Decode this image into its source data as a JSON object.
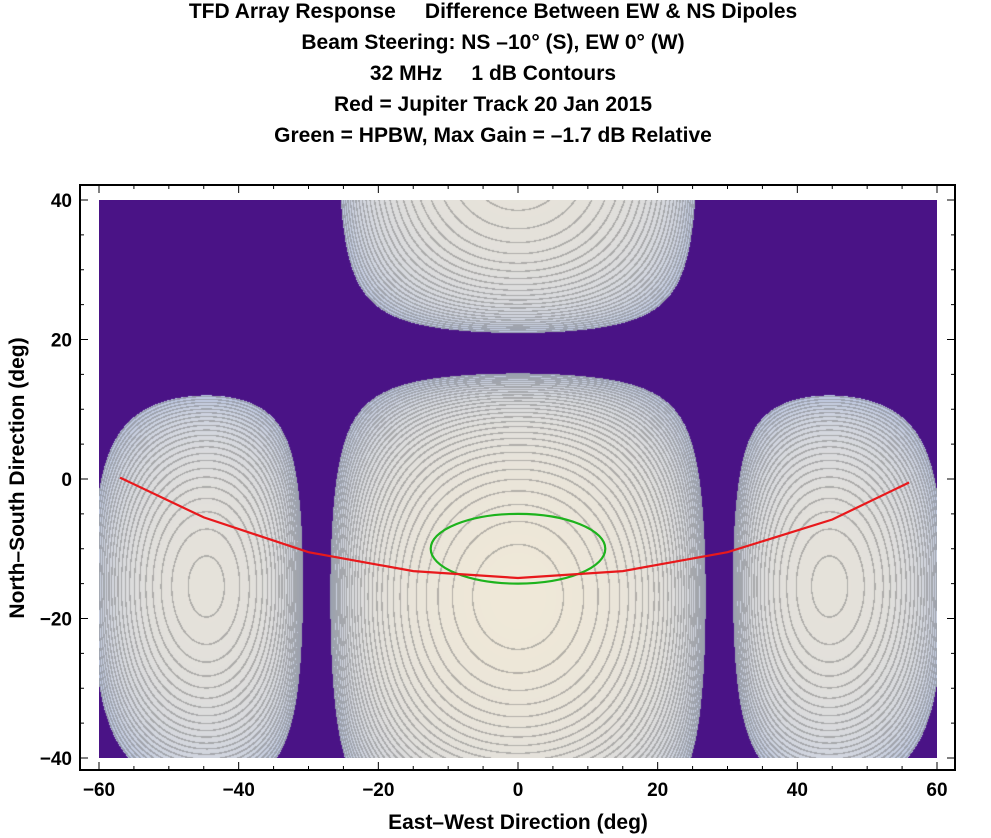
{
  "chart_data": {
    "type": "contour",
    "title_lines": [
      "TFD Array Response     Difference Between EW & NS Dipoles",
      "Beam Steering: NS –10° (S), EW 0° (W)",
      "32 MHz     1 dB Contours",
      "Red = Jupiter Track 20 Jan 2015",
      "Green = HPBW, Max Gain = –1.7 dB Relative"
    ],
    "xlabel": "East–West Direction (deg)",
    "ylabel": "North–South Direction (deg)",
    "xlim": [
      -63,
      62
    ],
    "ylim": [
      -42,
      42
    ],
    "data_xlim": [
      -60,
      60
    ],
    "data_ylim": [
      -40,
      40
    ],
    "xticks": [
      -60,
      -40,
      -20,
      0,
      20,
      40,
      60
    ],
    "xtick_labels": [
      "−60",
      "−40",
      "−20",
      "0",
      "20",
      "40",
      "60"
    ],
    "yticks": [
      -40,
      -20,
      0,
      20,
      40
    ],
    "ytick_labels": [
      "−40",
      "−20",
      "0",
      "20",
      "40"
    ],
    "contour_interval_db": 1,
    "nulls": {
      "ew_deg": [
        -29,
        29
      ],
      "ns_deg": 18
    },
    "jupiter_track": {
      "color": "#e8191c",
      "x": [
        -57,
        -45,
        -30,
        -15,
        0,
        15,
        30,
        45,
        56
      ],
      "y": [
        0.2,
        -5.5,
        -10.5,
        -13.2,
        -14.2,
        -13.2,
        -10.5,
        -5.8,
        -0.5
      ]
    },
    "hpbw": {
      "color": "#1db31d",
      "center": [
        0,
        -10
      ],
      "half_width_ew": 12.5,
      "half_height_ns": 5
    },
    "colors": {
      "null_region": "#4a1386",
      "high": "#efe8d8",
      "low": "#b9c6e4",
      "contour": "#6e6e6e"
    }
  }
}
